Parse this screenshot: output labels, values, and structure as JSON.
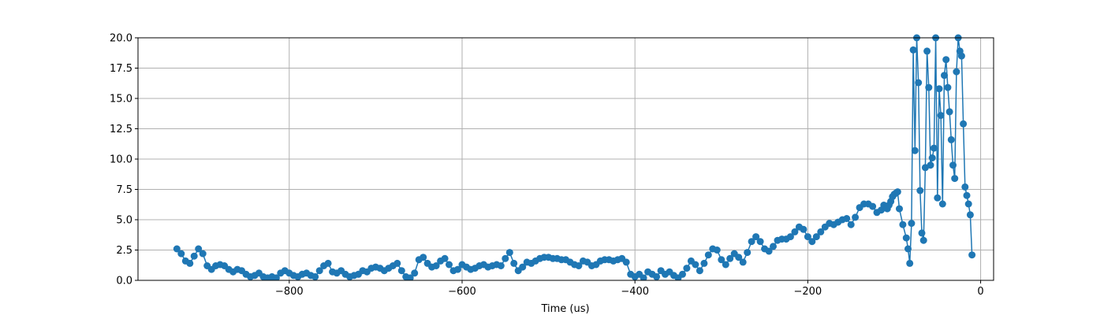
{
  "chart_data": {
    "type": "line",
    "title": "",
    "xlabel": "Time (us)",
    "ylabel": "",
    "xlim": [
      -975,
      15
    ],
    "ylim": [
      0,
      20
    ],
    "grid": true,
    "legend": "none",
    "marker": "circle",
    "line_color": "#1f77b4",
    "xticks": [
      -800,
      -600,
      -400,
      -200,
      0
    ],
    "xtick_labels": [
      "−800",
      "−600",
      "−400",
      "−200",
      "0"
    ],
    "yticks": [
      0,
      2.5,
      5,
      7.5,
      10,
      12.5,
      15,
      17.5,
      20
    ],
    "ytick_labels": [
      "0.0",
      "2.5",
      "5.0",
      "7.5",
      "10.0",
      "12.5",
      "15.0",
      "17.5",
      "20.0"
    ],
    "series": [
      {
        "x": [
          -930,
          -925,
          -920,
          -915,
          -910,
          -905,
          -900,
          -895,
          -890,
          -885,
          -880,
          -875,
          -870,
          -865,
          -860,
          -855,
          -850,
          -845,
          -840,
          -835,
          -830,
          -825,
          -820,
          -815,
          -810,
          -805,
          -800,
          -795,
          -790,
          -785,
          -780,
          -775,
          -770,
          -765,
          -760,
          -755,
          -750,
          -745,
          -740,
          -735,
          -730,
          -725,
          -720,
          -715,
          -710,
          -705,
          -700,
          -695,
          -690,
          -685,
          -680,
          -675,
          -670,
          -665,
          -660,
          -655,
          -650,
          -645,
          -640,
          -635,
          -630,
          -625,
          -620,
          -615,
          -610,
          -605,
          -600,
          -595,
          -590,
          -585,
          -580,
          -575,
          -570,
          -565,
          -560,
          -555,
          -550,
          -545,
          -540,
          -535,
          -530,
          -525,
          -520,
          -515,
          -510,
          -505,
          -500,
          -495,
          -490,
          -485,
          -480,
          -475,
          -470,
          -465,
          -460,
          -455,
          -450,
          -445,
          -440,
          -435,
          -430,
          -425,
          -420,
          -415,
          -410,
          -405,
          -400,
          -395,
          -390,
          -385,
          -380,
          -375,
          -370,
          -365,
          -360,
          -355,
          -350,
          -345,
          -340,
          -335,
          -330,
          -325,
          -320,
          -315,
          -310,
          -305,
          -300,
          -295,
          -290,
          -285,
          -280,
          -275,
          -270,
          -265,
          -260,
          -255,
          -250,
          -245,
          -240,
          -235,
          -230,
          -225,
          -220,
          -215,
          -210,
          -205,
          -200,
          -195,
          -190,
          -185,
          -180,
          -175,
          -170,
          -165,
          -160,
          -155,
          -150,
          -145,
          -140,
          -135,
          -130,
          -125,
          -120,
          -115,
          -112,
          -110,
          -108,
          -106,
          -104,
          -102,
          -100,
          -98,
          -96,
          -94,
          -90,
          -86,
          -84,
          -82,
          -80,
          -78,
          -76,
          -74,
          -72,
          -70,
          -68,
          -66,
          -64,
          -62,
          -60,
          -58,
          -56,
          -54,
          -52,
          -50,
          -48,
          -46,
          -44,
          -42,
          -40,
          -38,
          -36,
          -34,
          -32,
          -30,
          -28,
          -26,
          -24,
          -22,
          -20,
          -18,
          -16,
          -14,
          -12,
          -10
        ],
        "y": [
          2.6,
          2.2,
          1.6,
          1.4,
          2.0,
          2.6,
          2.2,
          1.2,
          0.9,
          1.2,
          1.3,
          1.2,
          0.9,
          0.7,
          0.9,
          0.8,
          0.5,
          0.3,
          0.4,
          0.6,
          0.3,
          0.2,
          0.3,
          0.2,
          0.6,
          0.8,
          0.6,
          0.4,
          0.3,
          0.5,
          0.6,
          0.4,
          0.3,
          0.8,
          1.2,
          1.4,
          0.7,
          0.6,
          0.8,
          0.5,
          0.3,
          0.4,
          0.5,
          0.8,
          0.7,
          1.0,
          1.1,
          1.0,
          0.8,
          1.0,
          1.2,
          1.4,
          0.8,
          0.3,
          0.2,
          0.6,
          1.7,
          1.9,
          1.4,
          1.1,
          1.2,
          1.6,
          1.8,
          1.3,
          0.8,
          0.9,
          1.3,
          1.1,
          0.9,
          1.0,
          1.2,
          1.3,
          1.1,
          1.2,
          1.3,
          1.2,
          1.8,
          2.3,
          1.4,
          0.8,
          1.1,
          1.5,
          1.4,
          1.6,
          1.8,
          1.9,
          1.9,
          1.8,
          1.8,
          1.7,
          1.7,
          1.5,
          1.3,
          1.2,
          1.6,
          1.5,
          1.2,
          1.3,
          1.6,
          1.7,
          1.7,
          1.6,
          1.7,
          1.8,
          1.5,
          0.5,
          0.3,
          0.5,
          0.2,
          0.7,
          0.5,
          0.3,
          0.8,
          0.5,
          0.7,
          0.4,
          0.2,
          0.5,
          1.0,
          1.6,
          1.3,
          0.8,
          1.4,
          2.1,
          2.6,
          2.5,
          1.7,
          1.3,
          1.8,
          2.2,
          1.9,
          1.5,
          2.3,
          3.2,
          3.6,
          3.2,
          2.6,
          2.4,
          2.8,
          3.3,
          3.4,
          3.4,
          3.6,
          4.0,
          4.4,
          4.2,
          3.6,
          3.2,
          3.6,
          4.0,
          4.4,
          4.7,
          4.6,
          4.8,
          5.0,
          5.1,
          4.6,
          5.2,
          6.0,
          6.3,
          6.3,
          6.1,
          5.6,
          5.8,
          6.2,
          6.0,
          5.9,
          6.2,
          6.5,
          6.9,
          7.1,
          7.2,
          7.3,
          5.9,
          4.6,
          3.5,
          2.6,
          1.4,
          4.7,
          19.0,
          10.7,
          20.0,
          16.3,
          7.4,
          3.9,
          3.3,
          9.3,
          18.9,
          15.9,
          9.5,
          10.1,
          10.9,
          20.0,
          6.8,
          15.8,
          13.6,
          6.3,
          16.9,
          18.2,
          15.9,
          13.9,
          11.6,
          9.5,
          8.4,
          17.2,
          20.0,
          18.9,
          18.5,
          12.9,
          7.7,
          7.0,
          6.3,
          5.4,
          2.1
        ]
      }
    ]
  }
}
